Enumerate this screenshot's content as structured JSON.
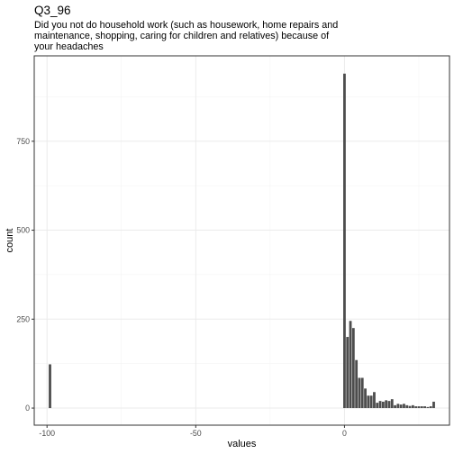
{
  "chart_data": {
    "type": "bar",
    "title": "Q3_96",
    "subtitle_lines": [
      "Did you not do household work (such as housework, home repairs and",
      "maintenance, shopping, caring for children and relatives) because of",
      "your headaches"
    ],
    "xlabel": "values",
    "ylabel": "count",
    "xlim": [
      -104.3,
      35.3
    ],
    "ylim": [
      -48,
      990
    ],
    "x_ticks": [
      -100,
      -50,
      0
    ],
    "x_tick_labels": [
      "-100",
      "-50",
      "0"
    ],
    "y_ticks": [
      0,
      250,
      500,
      750
    ],
    "y_tick_labels": [
      "0",
      "250",
      "500",
      "750"
    ],
    "grid": true,
    "bar_color": "#4d4d4d",
    "bin_width": 0.85,
    "bins": [
      {
        "x": -99,
        "count": 123
      },
      {
        "x": 0,
        "count": 940
      },
      {
        "x": 1,
        "count": 200
      },
      {
        "x": 2,
        "count": 245
      },
      {
        "x": 3,
        "count": 225
      },
      {
        "x": 4,
        "count": 135
      },
      {
        "x": 5,
        "count": 85
      },
      {
        "x": 6,
        "count": 85
      },
      {
        "x": 7,
        "count": 55
      },
      {
        "x": 8,
        "count": 35
      },
      {
        "x": 9,
        "count": 35
      },
      {
        "x": 10,
        "count": 45
      },
      {
        "x": 11,
        "count": 15
      },
      {
        "x": 12,
        "count": 20
      },
      {
        "x": 13,
        "count": 18
      },
      {
        "x": 14,
        "count": 22
      },
      {
        "x": 15,
        "count": 20
      },
      {
        "x": 16,
        "count": 25
      },
      {
        "x": 17,
        "count": 8
      },
      {
        "x": 18,
        "count": 12
      },
      {
        "x": 19,
        "count": 10
      },
      {
        "x": 20,
        "count": 12
      },
      {
        "x": 21,
        "count": 8
      },
      {
        "x": 22,
        "count": 6
      },
      {
        "x": 23,
        "count": 8
      },
      {
        "x": 24,
        "count": 5
      },
      {
        "x": 25,
        "count": 5
      },
      {
        "x": 26,
        "count": 5
      },
      {
        "x": 27,
        "count": 5
      },
      {
        "x": 28,
        "count": 3
      },
      {
        "x": 29,
        "count": 5
      },
      {
        "x": 30,
        "count": 18
      }
    ]
  }
}
